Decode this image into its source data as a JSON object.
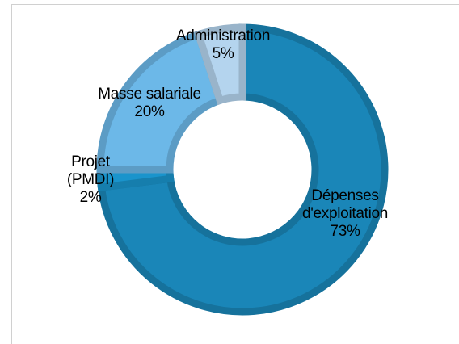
{
  "chart_data": {
    "type": "donut",
    "categories": [
      "Dépenses d'exploitation",
      "Projet (PMDI)",
      "Masse salariale",
      "Administration"
    ],
    "values": [
      73,
      2,
      20,
      5
    ],
    "value_labels": [
      "73%",
      "2%",
      "20%",
      "5%"
    ],
    "colors": [
      "#1a86b8",
      "#1a94cc",
      "#6cb8e8",
      "#b4d4ee"
    ]
  }
}
